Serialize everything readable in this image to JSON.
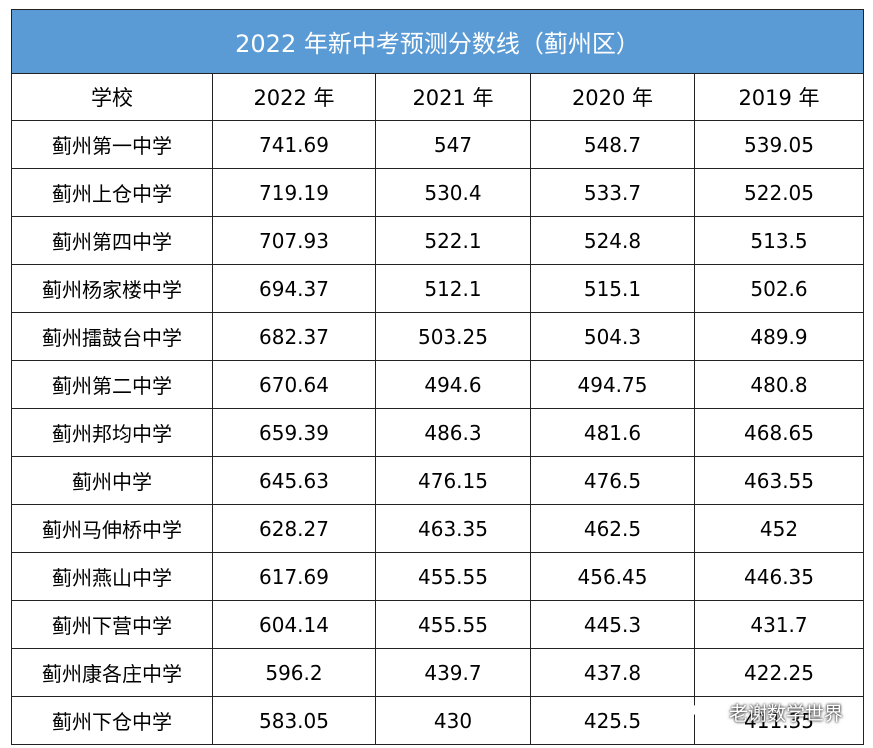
{
  "title": "2022 年新中考预测分数线（蓟州区）",
  "headers": [
    "学校",
    "2022 年",
    "2021 年",
    "2020 年",
    "2019 年"
  ],
  "rows": [
    [
      "蓟州第一中学",
      "741.69",
      "547",
      "548.7",
      "539.05"
    ],
    [
      "蓟州上仓中学",
      "719.19",
      "530.4",
      "533.7",
      "522.05"
    ],
    [
      "蓟州第四中学",
      "707.93",
      "522.1",
      "524.8",
      "513.5"
    ],
    [
      "蓟州杨家楼中学",
      "694.37",
      "512.1",
      "515.1",
      "502.6"
    ],
    [
      "蓟州擂鼓台中学",
      "682.37",
      "503.25",
      "504.3",
      "489.9"
    ],
    [
      "蓟州第二中学",
      "670.64",
      "494.6",
      "494.75",
      "480.8"
    ],
    [
      "蓟州邦均中学",
      "659.39",
      "486.3",
      "481.6",
      "468.65"
    ],
    [
      "蓟州中学",
      "645.63",
      "476.15",
      "476.5",
      "463.55"
    ],
    [
      "蓟州马伸桥中学",
      "628.27",
      "463.35",
      "462.5",
      "452"
    ],
    [
      "蓟州燕山中学",
      "617.69",
      "455.55",
      "456.45",
      "446.35"
    ],
    [
      "蓟州下营中学",
      "604.14",
      "455.55",
      "445.3",
      "431.7"
    ],
    [
      "蓟州康各庄中学",
      "596.2",
      "439.7",
      "437.8",
      "422.25"
    ],
    [
      "蓟州下仓中学",
      "583.05",
      "430",
      "425.5",
      "411.35"
    ]
  ],
  "watermark": {
    "text": "老谢数学世界",
    "icon": "wechat-icon"
  },
  "colors": {
    "title_bg": "#5b9bd5",
    "title_text": "#ffffff",
    "border": "#222222"
  }
}
